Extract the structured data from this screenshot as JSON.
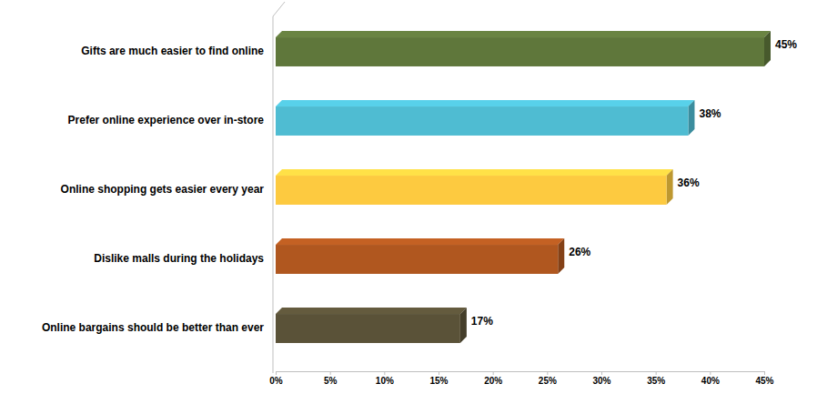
{
  "chart_data": {
    "type": "bar",
    "orientation": "horizontal",
    "categories": [
      "Gifts are much easier to find online",
      "Prefer online experience over in-store",
      "Online shopping gets easier every year",
      "Dislike malls during the holidays",
      "Online bargains should be better than ever"
    ],
    "values": [
      45,
      38,
      36,
      26,
      17
    ],
    "value_labels": [
      "45%",
      "38%",
      "36%",
      "26%",
      "17%"
    ],
    "colors": [
      "#5f773b",
      "#4fbcd2",
      "#fdca40",
      "#b0571f",
      "#5a5238"
    ],
    "xlim": [
      0,
      45
    ],
    "xticks": [
      {
        "value": 0,
        "label": "0%"
      },
      {
        "value": 5,
        "label": "5%"
      },
      {
        "value": 10,
        "label": "10%"
      },
      {
        "value": 15,
        "label": "15%"
      },
      {
        "value": 20,
        "label": "20%"
      },
      {
        "value": 25,
        "label": "25%"
      },
      {
        "value": 30,
        "label": "30%"
      },
      {
        "value": 35,
        "label": "35%"
      },
      {
        "value": 40,
        "label": "40%"
      },
      {
        "value": 45,
        "label": "45%"
      }
    ],
    "data_labels": true,
    "grid": false
  }
}
